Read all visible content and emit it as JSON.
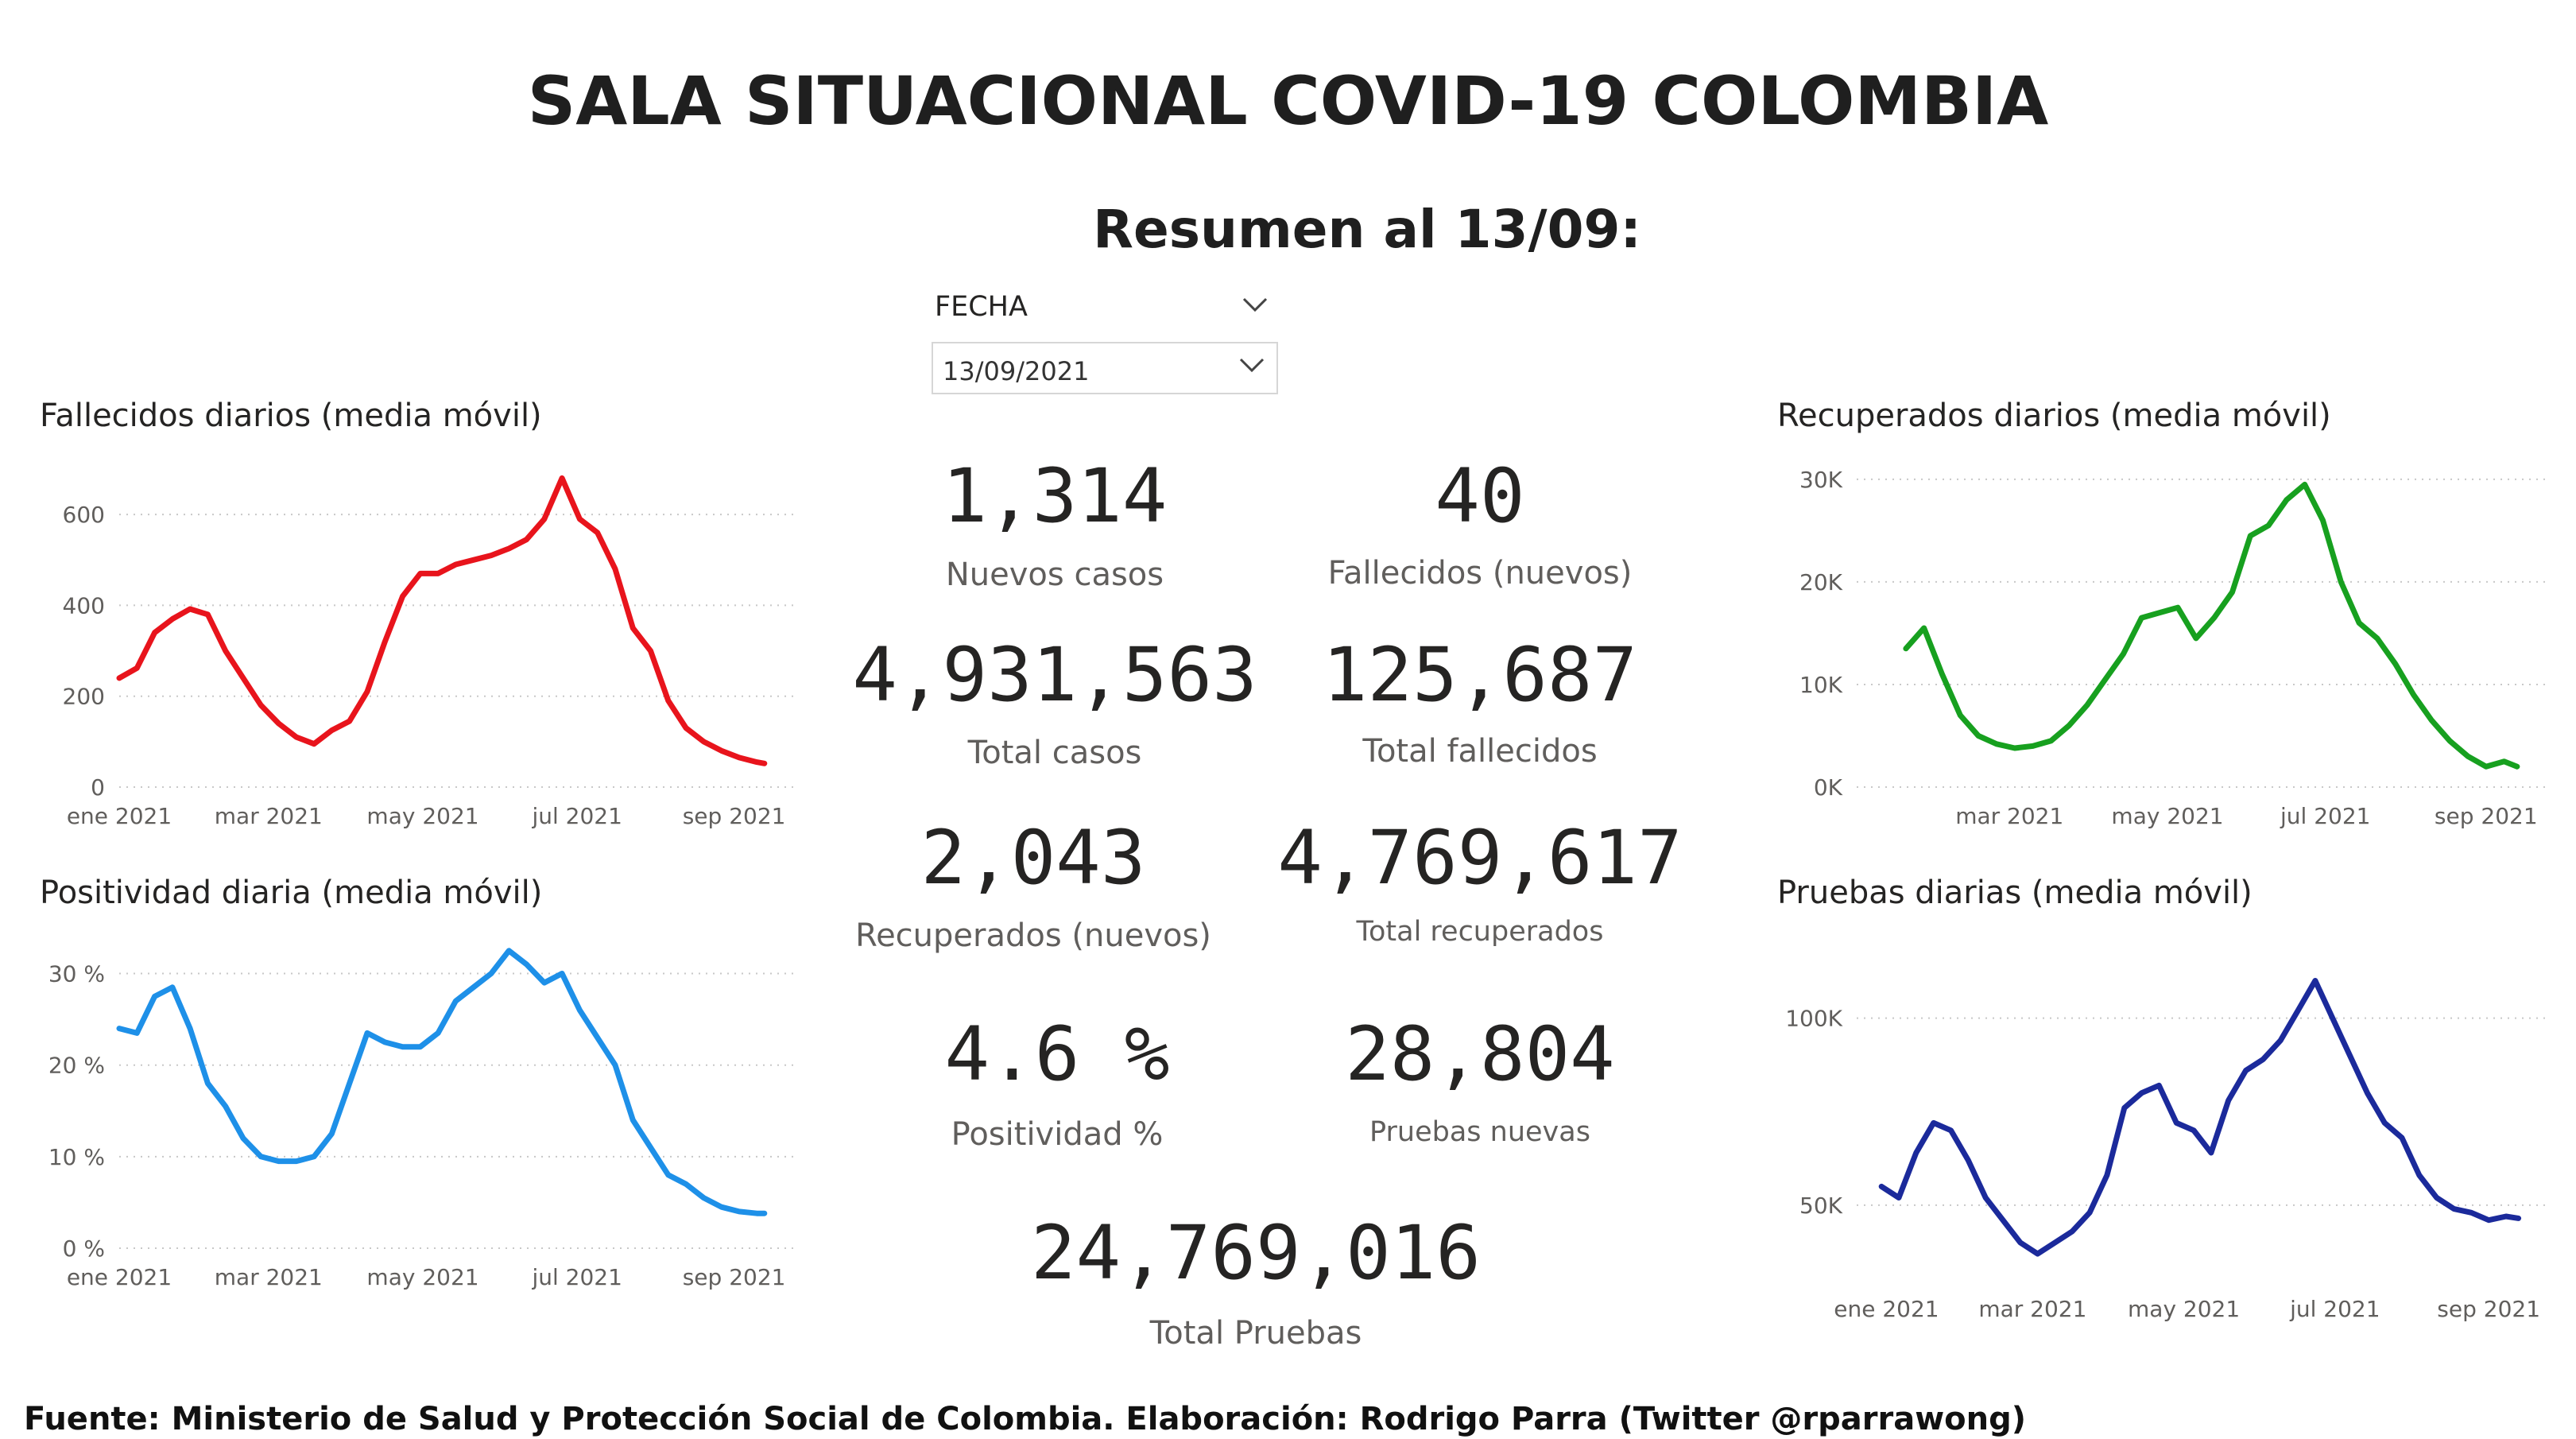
{
  "header": {
    "title": "SALA SITUACIONAL COVID-19 COLOMBIA",
    "subtitle": "Resumen al 13/09:"
  },
  "slicer": {
    "label": "FECHA",
    "value": "13/09/2021"
  },
  "kpis": {
    "nuevos_casos": {
      "value": "1,314",
      "label": "Nuevos casos"
    },
    "fallecidos_nuevos": {
      "value": "40",
      "label": "Fallecidos (nuevos)"
    },
    "total_casos": {
      "value": "4,931,563",
      "label": "Total casos"
    },
    "total_fallecidos": {
      "value": "125,687",
      "label": "Total fallecidos"
    },
    "recuperados_nuevos": {
      "value": "2,043",
      "label": "Recuperados (nuevos)"
    },
    "total_recuperados": {
      "value": "4,769,617",
      "label": "Total recuperados"
    },
    "positividad": {
      "value": "4.6 %",
      "label": "Positividad %"
    },
    "pruebas_nuevas": {
      "value": "28,804",
      "label": "Pruebas nuevas"
    },
    "total_pruebas": {
      "value": "24,769,016",
      "label": "Total Pruebas"
    }
  },
  "footer": "Fuente: Ministerio de Salud y Protección Social de Colombia. Elaboración: Rodrigo Parra (Twitter @rparrawong)",
  "chart_data": [
    {
      "id": "fallecidos",
      "type": "line",
      "title": "Fallecidos diarios (media móvil)",
      "color": "#e8141c",
      "ylim": [
        0,
        700
      ],
      "yticks": [
        0,
        200,
        400,
        600
      ],
      "ytick_labels": [
        "0",
        "200",
        "400",
        "600"
      ],
      "xlim": [
        "2021-01-01",
        "2021-09-25"
      ],
      "xticks": [
        "2021-01-01",
        "2021-03-01",
        "2021-05-01",
        "2021-07-01",
        "2021-09-01"
      ],
      "xtick_labels": [
        "ene 2021",
        "mar 2021",
        "may 2021",
        "jul 2021",
        "sep 2021"
      ],
      "grid": true,
      "x": [
        "2021-01-01",
        "2021-01-08",
        "2021-01-15",
        "2021-01-22",
        "2021-01-29",
        "2021-02-05",
        "2021-02-12",
        "2021-02-19",
        "2021-02-26",
        "2021-03-05",
        "2021-03-12",
        "2021-03-19",
        "2021-03-26",
        "2021-04-02",
        "2021-04-09",
        "2021-04-16",
        "2021-04-23",
        "2021-04-30",
        "2021-05-07",
        "2021-05-14",
        "2021-05-21",
        "2021-05-28",
        "2021-06-04",
        "2021-06-11",
        "2021-06-18",
        "2021-06-25",
        "2021-07-02",
        "2021-07-09",
        "2021-07-16",
        "2021-07-23",
        "2021-07-30",
        "2021-08-06",
        "2021-08-13",
        "2021-08-20",
        "2021-08-27",
        "2021-09-03",
        "2021-09-10",
        "2021-09-13"
      ],
      "values": [
        240,
        262,
        340,
        370,
        392,
        380,
        300,
        240,
        180,
        140,
        110,
        95,
        125,
        145,
        210,
        320,
        420,
        470,
        470,
        490,
        500,
        510,
        525,
        545,
        590,
        680,
        590,
        560,
        480,
        350,
        300,
        190,
        130,
        100,
        80,
        65,
        55,
        52
      ]
    },
    {
      "id": "positividad",
      "type": "line",
      "title": "Positividad diaria (media móvil)",
      "color": "#1e90e8",
      "ylim": [
        0,
        33
      ],
      "yticks": [
        0,
        10,
        20,
        30
      ],
      "ytick_labels": [
        "0 %",
        "10 %",
        "20 %",
        "30 %"
      ],
      "xlim": [
        "2021-01-01",
        "2021-09-25"
      ],
      "xticks": [
        "2021-01-01",
        "2021-03-01",
        "2021-05-01",
        "2021-07-01",
        "2021-09-01"
      ],
      "xtick_labels": [
        "ene 2021",
        "mar 2021",
        "may 2021",
        "jul 2021",
        "sep 2021"
      ],
      "grid": true,
      "x": [
        "2021-01-01",
        "2021-01-08",
        "2021-01-15",
        "2021-01-22",
        "2021-01-29",
        "2021-02-05",
        "2021-02-12",
        "2021-02-19",
        "2021-02-26",
        "2021-03-05",
        "2021-03-12",
        "2021-03-19",
        "2021-03-26",
        "2021-04-02",
        "2021-04-09",
        "2021-04-16",
        "2021-04-23",
        "2021-04-30",
        "2021-05-07",
        "2021-05-14",
        "2021-05-21",
        "2021-05-28",
        "2021-06-04",
        "2021-06-11",
        "2021-06-18",
        "2021-06-25",
        "2021-07-02",
        "2021-07-09",
        "2021-07-16",
        "2021-07-23",
        "2021-07-30",
        "2021-08-06",
        "2021-08-13",
        "2021-08-20",
        "2021-08-27",
        "2021-09-03",
        "2021-09-10",
        "2021-09-13"
      ],
      "values": [
        24,
        23.5,
        27.5,
        28.5,
        24,
        18,
        15.5,
        12,
        10,
        9.5,
        9.5,
        10,
        12.5,
        18,
        23.5,
        22.5,
        22,
        22,
        23.5,
        27,
        28.5,
        30,
        32.5,
        31,
        29,
        30,
        26,
        23,
        20,
        14,
        11,
        8,
        7,
        5.5,
        4.5,
        4,
        3.8,
        3.8
      ]
    },
    {
      "id": "recuperados",
      "type": "line",
      "title": "Recuperados diarios (media móvil)",
      "color": "#17a01f",
      "ylim": [
        0,
        31000
      ],
      "yticks": [
        0,
        10000,
        20000,
        30000
      ],
      "ytick_labels": [
        "0K",
        "10K",
        "20K",
        "30K"
      ],
      "xlim": [
        "2021-01-01",
        "2021-09-25"
      ],
      "xticks": [
        "2021-03-01",
        "2021-05-01",
        "2021-07-01",
        "2021-09-01"
      ],
      "xtick_labels": [
        "mar 2021",
        "may 2021",
        "jul 2021",
        "sep 2021"
      ],
      "grid": true,
      "x": [
        "2021-01-20",
        "2021-01-27",
        "2021-02-03",
        "2021-02-10",
        "2021-02-17",
        "2021-02-24",
        "2021-03-03",
        "2021-03-10",
        "2021-03-17",
        "2021-03-24",
        "2021-03-31",
        "2021-04-07",
        "2021-04-14",
        "2021-04-21",
        "2021-04-28",
        "2021-05-05",
        "2021-05-12",
        "2021-05-19",
        "2021-05-26",
        "2021-06-02",
        "2021-06-09",
        "2021-06-16",
        "2021-06-23",
        "2021-06-30",
        "2021-07-07",
        "2021-07-14",
        "2021-07-21",
        "2021-07-28",
        "2021-08-04",
        "2021-08-11",
        "2021-08-18",
        "2021-08-25",
        "2021-09-01",
        "2021-09-08",
        "2021-09-13"
      ],
      "values": [
        13500,
        15500,
        11000,
        7000,
        5000,
        4200,
        3800,
        4000,
        4500,
        6000,
        8000,
        10500,
        13000,
        16500,
        17000,
        17500,
        14500,
        16500,
        19000,
        24500,
        25500,
        28000,
        29500,
        26000,
        20000,
        16000,
        14500,
        12000,
        9000,
        6500,
        4500,
        3000,
        2000,
        2500,
        2000
      ]
    },
    {
      "id": "pruebas",
      "type": "line",
      "title": "Pruebas diarias (media móvil)",
      "color": "#1b2a9b",
      "ylim": [
        30000,
        115000
      ],
      "yticks": [
        50000,
        100000
      ],
      "ytick_labels": [
        "50K",
        "100K"
      ],
      "xlim": [
        "2020-12-20",
        "2021-09-25"
      ],
      "xticks": [
        "2021-01-01",
        "2021-03-01",
        "2021-05-01",
        "2021-07-01",
        "2021-09-01"
      ],
      "xtick_labels": [
        "ene 2021",
        "mar 2021",
        "may 2021",
        "jul 2021",
        "sep 2021"
      ],
      "grid": true,
      "x": [
        "2020-12-30",
        "2021-01-06",
        "2021-01-13",
        "2021-01-20",
        "2021-01-27",
        "2021-02-03",
        "2021-02-10",
        "2021-02-17",
        "2021-02-24",
        "2021-03-03",
        "2021-03-10",
        "2021-03-17",
        "2021-03-24",
        "2021-03-31",
        "2021-04-07",
        "2021-04-14",
        "2021-04-21",
        "2021-04-28",
        "2021-05-05",
        "2021-05-12",
        "2021-05-19",
        "2021-05-26",
        "2021-06-02",
        "2021-06-09",
        "2021-06-16",
        "2021-06-23",
        "2021-06-30",
        "2021-07-07",
        "2021-07-14",
        "2021-07-21",
        "2021-07-28",
        "2021-08-04",
        "2021-08-11",
        "2021-08-18",
        "2021-08-25",
        "2021-09-01",
        "2021-09-08",
        "2021-09-13"
      ],
      "values": [
        55000,
        52000,
        64000,
        72000,
        70000,
        62000,
        52000,
        46000,
        40000,
        37000,
        40000,
        43000,
        48000,
        58000,
        76000,
        80000,
        82000,
        72000,
        70000,
        64000,
        78000,
        86000,
        89000,
        94000,
        102000,
        110000,
        100000,
        90000,
        80000,
        72000,
        68000,
        58000,
        52000,
        49000,
        48000,
        46000,
        47000,
        46500
      ]
    }
  ]
}
